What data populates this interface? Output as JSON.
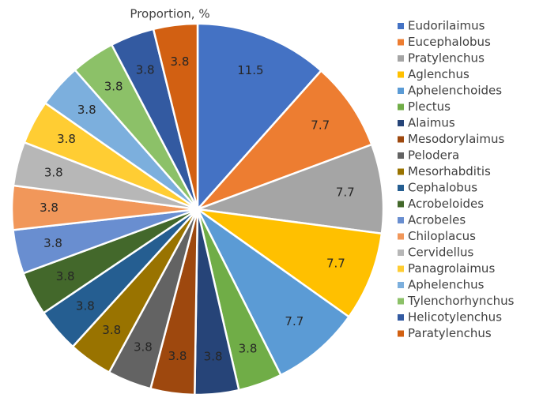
{
  "chart_data": {
    "type": "pie",
    "title": "Proportion, %",
    "categories": [
      "Eudorilaimus",
      "Eucephalobus",
      "Pratylenchus",
      "Aglenchus",
      "Aphelenchoides",
      "Plectus",
      "Alaimus",
      "Mesodorylaimus",
      "Pelodera",
      "Mesorhabditis",
      "Cephalobus",
      "Acrobeloides",
      "Acrobeles",
      "Chiloplacus",
      "Cervidellus",
      "Panagrolaimus",
      "Aphelenchus",
      "Tylenchorhynchus",
      "Helicotylenchus",
      "Paratylenchus"
    ],
    "values": [
      11.5,
      7.7,
      7.7,
      7.7,
      7.7,
      3.8,
      3.8,
      3.8,
      3.8,
      3.8,
      3.8,
      3.8,
      3.8,
      3.8,
      3.8,
      3.8,
      3.8,
      3.8,
      3.8,
      3.8
    ],
    "colors": [
      "#4472c4",
      "#ed7d31",
      "#a5a5a5",
      "#ffc000",
      "#5b9bd5",
      "#70ad47",
      "#264478",
      "#9e480e",
      "#636363",
      "#997300",
      "#255e91",
      "#43682b",
      "#698ed0",
      "#f1975a",
      "#b7b7b7",
      "#ffcd33",
      "#7cafdd",
      "#8cc168",
      "#335aa1",
      "#d26012"
    ],
    "legend": "right"
  }
}
